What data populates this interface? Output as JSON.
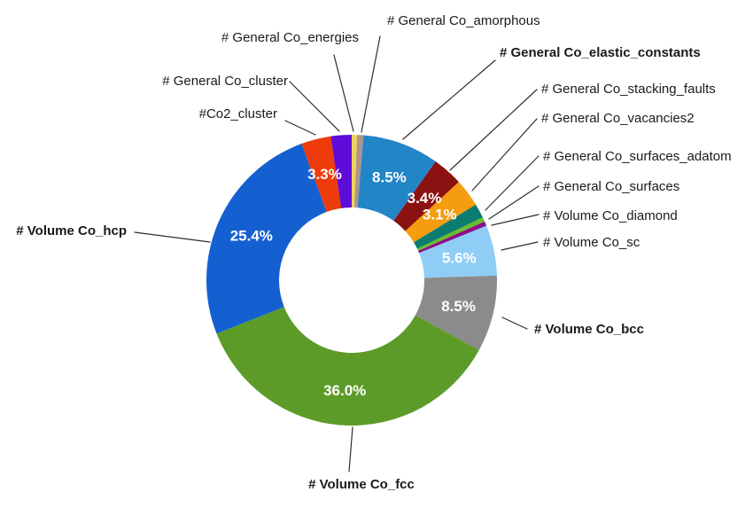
{
  "chart_data": {
    "type": "pie",
    "donut": true,
    "inner_radius_ratio": 0.5,
    "start_angle_deg": -90,
    "direction": "clockwise",
    "title": "",
    "legend": "none",
    "background": "#ffffff",
    "pct_text_color": "#ffffff",
    "label_text_color": "#1a1a1a",
    "leader_line_color": "#2e2e2e",
    "slices": [
      {
        "label": "# General Co_energies",
        "value_pct": 0.6,
        "pct_label": null,
        "color": "#EDD15F",
        "bold": false
      },
      {
        "label": "# General Co_amorphous",
        "value_pct": 0.7,
        "pct_label": null,
        "color": "#AE948A",
        "bold": false
      },
      {
        "label": "# General Co_elastic_constants",
        "value_pct": 8.5,
        "pct_label": "8.5%",
        "color": "#2185C6",
        "bold": true
      },
      {
        "label": "# General Co_stacking_faults",
        "value_pct": 3.4,
        "pct_label": "3.4%",
        "color": "#8C1111",
        "bold": false
      },
      {
        "label": "# General Co_vacancies2",
        "value_pct": 3.1,
        "pct_label": "3.1%",
        "color": "#F59D0E",
        "bold": false
      },
      {
        "label": "# General Co_surfaces_adatom",
        "value_pct": 1.6,
        "pct_label": null,
        "color": "#0C7C70",
        "bold": false
      },
      {
        "label": "# General Co_surfaces",
        "value_pct": 0.5,
        "pct_label": null,
        "color": "#6ABD2D",
        "bold": false
      },
      {
        "label": "# Volume Co_diamond",
        "value_pct": 0.5,
        "pct_label": null,
        "color": "#8E0D8A",
        "bold": false
      },
      {
        "label": "# Volume Co_sc",
        "value_pct": 5.6,
        "pct_label": "5.6%",
        "color": "#90CDF6",
        "bold": false
      },
      {
        "label": "# Volume Co_bcc",
        "value_pct": 8.5,
        "pct_label": "8.5%",
        "color": "#8B8B8B",
        "bold": true
      },
      {
        "label": "# Volume Co_fcc",
        "value_pct": 36.0,
        "pct_label": "36.0%",
        "color": "#5C9B28",
        "bold": true
      },
      {
        "label": "# Volume Co_hcp",
        "value_pct": 25.4,
        "pct_label": "25.4%",
        "color": "#1560D1",
        "bold": true
      },
      {
        "label": "#Co2_cluster",
        "value_pct": 3.3,
        "pct_label": "3.3%",
        "color": "#EE3B0C",
        "bold": false
      },
      {
        "label": "# General Co_cluster",
        "value_pct": 2.3,
        "pct_label": null,
        "color": "#5E0CD8",
        "bold": false
      }
    ]
  }
}
